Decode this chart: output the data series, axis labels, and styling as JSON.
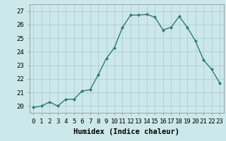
{
  "x": [
    0,
    1,
    2,
    3,
    4,
    5,
    6,
    7,
    8,
    9,
    10,
    11,
    12,
    13,
    14,
    15,
    16,
    17,
    18,
    19,
    20,
    21,
    22,
    23
  ],
  "y": [
    19.9,
    20.0,
    20.3,
    20.0,
    20.5,
    20.5,
    21.1,
    21.2,
    22.3,
    23.5,
    24.3,
    25.8,
    26.7,
    26.7,
    26.75,
    26.55,
    25.6,
    25.8,
    26.6,
    25.8,
    24.8,
    23.4,
    22.7,
    21.7
  ],
  "line_color": "#2d7d6e",
  "marker": "D",
  "marker_size": 2,
  "bg_color": "#cce8ea",
  "grid_color": "#b0cdd0",
  "xlabel": "Humidex (Indice chaleur)",
  "ylim": [
    19.5,
    27.5
  ],
  "xlim": [
    -0.5,
    23.5
  ],
  "yticks": [
    20,
    21,
    22,
    23,
    24,
    25,
    26,
    27
  ],
  "xtick_labels": [
    "0",
    "1",
    "2",
    "3",
    "4",
    "5",
    "6",
    "7",
    "8",
    "9",
    "10",
    "11",
    "12",
    "13",
    "14",
    "15",
    "16",
    "17",
    "18",
    "19",
    "20",
    "21",
    "22",
    "23"
  ],
  "tick_fontsize": 6.5,
  "xlabel_fontsize": 7.5,
  "line_width": 1.0
}
